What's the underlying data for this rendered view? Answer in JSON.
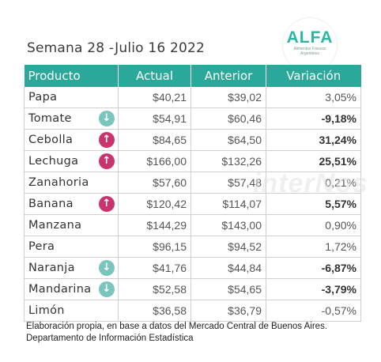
{
  "title": "Semana 28 -Julio 16 2022",
  "logo": {
    "word": "ALFA",
    "subtitle": "Alimentos Frescos Argentinos"
  },
  "watermark": "interNos",
  "table": {
    "headers": [
      "Producto",
      "Actual",
      "Anterior",
      "Variación"
    ],
    "rows": [
      {
        "product": "Papa",
        "actual": "$40,21",
        "anterior": "$39,02",
        "variacion": "3,05%",
        "arrow": "none"
      },
      {
        "product": "Tomate",
        "actual": "$54,91",
        "anterior": "$60,46",
        "variacion": "-9,18%",
        "arrow": "down"
      },
      {
        "product": "Cebolla",
        "actual": "$84,65",
        "anterior": "$64,50",
        "variacion": "31,24%",
        "arrow": "up"
      },
      {
        "product": "Lechuga",
        "actual": "$166,00",
        "anterior": "$132,26",
        "variacion": "25,51%",
        "arrow": "up"
      },
      {
        "product": "Zanahoria",
        "actual": "$57,60",
        "anterior": "$57,48",
        "variacion": "0,21%",
        "arrow": "none"
      },
      {
        "product": "Banana",
        "actual": "$120,42",
        "anterior": "$114,07",
        "variacion": "5,57%",
        "arrow": "up"
      },
      {
        "product": "Manzana",
        "actual": "$144,29",
        "anterior": "$143,00",
        "variacion": "0,90%",
        "arrow": "none"
      },
      {
        "product": "Pera",
        "actual": "$96,15",
        "anterior": "$94,52",
        "variacion": "1,72%",
        "arrow": "none"
      },
      {
        "product": "Naranja",
        "actual": "$41,76",
        "anterior": "$44,84",
        "variacion": "-6,87%",
        "arrow": "down"
      },
      {
        "product": "Mandarina",
        "actual": "$52,58",
        "anterior": "$54,65",
        "variacion": "-3,79%",
        "arrow": "down"
      },
      {
        "product": "Limón",
        "actual": "$36,58",
        "anterior": "$36,79",
        "variacion": "-0,57%",
        "arrow": "none"
      }
    ]
  },
  "footer": {
    "line1": "Elaboración propia, en base a datos del Mercado Central de Buenos Aires.",
    "line2": "Departamento de Información Estadística"
  },
  "colors": {
    "header_bg": "#2aa89a",
    "arrow_up": "#c9336f",
    "arrow_down": "#7ac5bd",
    "brand": "#2bb5a3"
  },
  "icons": {
    "up": "arrow-up-icon",
    "down": "arrow-down-icon"
  }
}
